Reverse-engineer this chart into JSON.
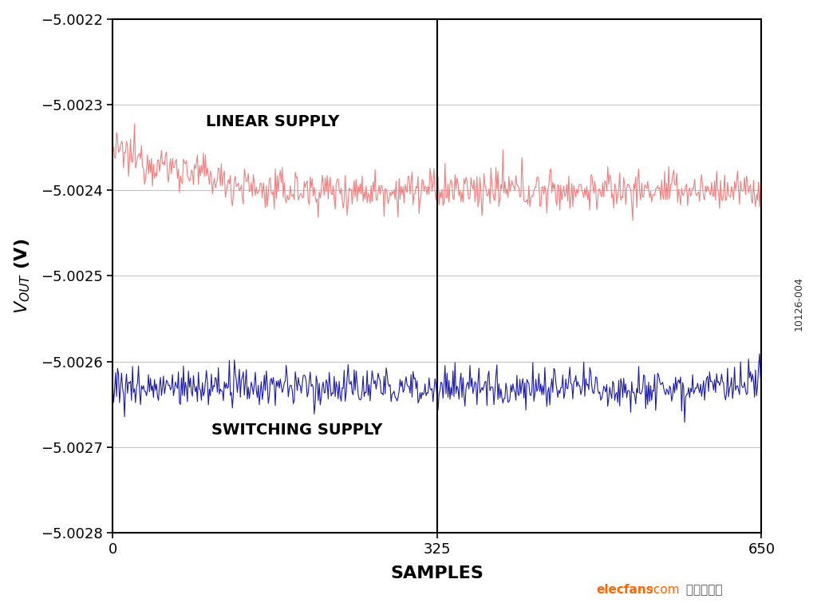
{
  "xlim": [
    0,
    650
  ],
  "ylim": [
    -5.0028,
    -5.0022
  ],
  "yticks": [
    -5.0028,
    -5.0027,
    -5.0026,
    -5.0025,
    -5.0024,
    -5.0023,
    -5.0022
  ],
  "xticks": [
    0,
    325,
    650
  ],
  "xlabel": "SAMPLES",
  "linear_label": "LINEAR SUPPLY",
  "switching_label": "SWITCHING SUPPLY",
  "linear_color": "#F08080",
  "switching_color": "#1C1CA8",
  "vline_x": 325,
  "linear_mean": -5.0024,
  "switching_mean": -5.00263,
  "linear_noise_std": 1.2e-05,
  "switching_noise_std": 1.2e-05,
  "n_samples": 650,
  "background_color": "#FFFFFF",
  "watermark_color_elec": "#FF6600",
  "watermark_color_rest": "#555555",
  "fig_id": "10126-004",
  "fig_id_color": "#333333",
  "linear_start_offset": 4.5e-05,
  "linear_drift_end": 150
}
